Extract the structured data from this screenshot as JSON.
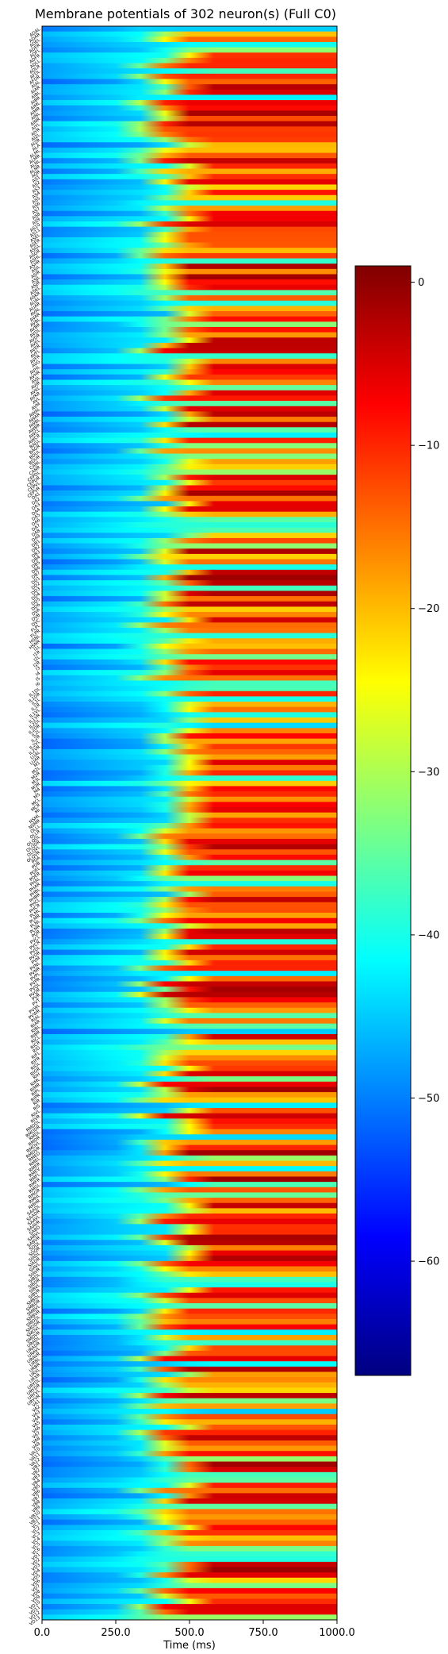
{
  "chart_data": {
    "type": "heatmap",
    "title": "Membrane potentials of 302 neuron(s) (Full C0)",
    "xlabel": "Time (ms)",
    "ylabel": "",
    "xlim": [
      0,
      1000
    ],
    "x_ticks": [
      "0.0",
      "250.0",
      "500.0",
      "750.0",
      "1000.0"
    ],
    "x_tick_values": [
      0,
      250,
      500,
      750,
      1000
    ],
    "neuron_count": 302,
    "colorbar": {
      "colormap": "jet",
      "range": [
        -67,
        1
      ],
      "ticks": [
        "0",
        "−10",
        "−20",
        "−30",
        "−40",
        "−50",
        "−60"
      ],
      "tick_values": [
        0,
        -10,
        -20,
        -30,
        -40,
        -50,
        -60
      ]
    },
    "row_labels": [
      "ADAL",
      "ADAR",
      "ADEL",
      "ADER",
      "ADFL",
      "ADFR",
      "ADLL",
      "ADLR",
      "AFDL",
      "AFDR",
      "AIAL",
      "AIAR",
      "AIBL",
      "AIBR",
      "AIML",
      "AIMR",
      "AINL",
      "AINR",
      "AIYL",
      "AIYR",
      "AIZL",
      "AIZR",
      "ALA",
      "ALML",
      "ALMR",
      "ALNL",
      "ALNR",
      "AQR",
      "AS1",
      "AS2",
      "AS3",
      "AS4",
      "AS5",
      "AS6",
      "AS7",
      "AS8",
      "AS9",
      "AS10",
      "AS11",
      "ASEL",
      "ASER",
      "ASGL",
      "ASGR",
      "ASHL",
      "ASHR",
      "ASIL",
      "ASIR",
      "ASJL",
      "ASJR",
      "ASKL",
      "ASKR",
      "AUAL",
      "AUAR",
      "AVAL",
      "AVAR",
      "AVBL",
      "AVBR",
      "AVDL",
      "AVDR",
      "AVEL",
      "AVER",
      "AVFL",
      "AVFR",
      "AVG",
      "AVHL",
      "AVHR",
      "AVJL",
      "AVJR",
      "AVKL",
      "AVKR",
      "AVL",
      "AVM",
      "AWAL",
      "AWAR",
      "AWBL",
      "AWBR",
      "AWCL",
      "AWCR",
      "BAGL",
      "BAGR",
      "BDUL",
      "BDUR",
      "CANL",
      "CANR",
      "CEPDL",
      "CEPDR",
      "CEPVL",
      "CEPVR",
      "DA1",
      "DA2",
      "DA3",
      "DA4",
      "DA5",
      "DA6",
      "DA7",
      "DA8",
      "DA9",
      "DB1",
      "DB2",
      "DB3",
      "DB4",
      "DB5",
      "DB6",
      "DB7",
      "DD1",
      "DD2",
      "DD3",
      "DD4",
      "DD5",
      "DD6",
      "DVA",
      "DVB",
      "DVC",
      "FLPL",
      "FLPR",
      "HSNL",
      "HSNR",
      "I1L",
      "I1R",
      "I2L",
      "I2R",
      "I3",
      "I4",
      "I5",
      "I6",
      "IL1DL",
      "IL1DR",
      "IL1L",
      "IL1R",
      "IL1VL",
      "IL1VR",
      "IL2DL",
      "IL2DR",
      "IL2L",
      "IL2R",
      "IL2VL",
      "IL2VR",
      "LUAL",
      "LUAR",
      "M1",
      "M2L",
      "M2R",
      "M3L",
      "M3R",
      "M4",
      "M5",
      "MCL",
      "MCR",
      "MI",
      "NSML",
      "NSMR",
      "OLLL",
      "OLLR",
      "OLQDL",
      "OLQDR",
      "OLQVL",
      "OLQVR",
      "PDA",
      "PDB",
      "PDEL",
      "PDER",
      "PHAL",
      "PHAR",
      "PHBL",
      "PHBR",
      "PHCL",
      "PHCR",
      "PLML",
      "PLMR",
      "PLNL",
      "PLNR",
      "PQR",
      "PVCL",
      "PVCR",
      "PVDL",
      "PVDR",
      "PVM",
      "PVNL",
      "PVNR",
      "PVPL",
      "PVPR",
      "PVQL",
      "PVQR",
      "PVR",
      "PVT",
      "PVWL",
      "PVWR",
      "RIAL",
      "RIAR",
      "RIBL",
      "RIBR",
      "RICL",
      "RICR",
      "RID",
      "RIFL",
      "RIFR",
      "RIGL",
      "RIGR",
      "RIH",
      "RIML",
      "RIMR",
      "RIPL",
      "RIPR",
      "RIR",
      "RIS",
      "RIVL",
      "RIVR",
      "RMDDL",
      "RMDDR",
      "RMDL",
      "RMDR",
      "RMDVL",
      "RMDVR",
      "RMED",
      "RMEL",
      "RMER",
      "RMEV",
      "RMFL",
      "RMFR",
      "RMGL",
      "RMGR",
      "RMHL",
      "RMHR",
      "SAADL",
      "SAADR",
      "SAAVL",
      "SAAVR",
      "SABD",
      "SABVL",
      "SABVR",
      "SDQL",
      "SDQR",
      "SIADL",
      "SIADR",
      "SIAVL",
      "SIAVR",
      "SIBDL",
      "SIBDR",
      "SIBVL",
      "SIBVR",
      "SMBDL",
      "SMBDR",
      "SMBVL",
      "SMBVR",
      "SMDDL",
      "SMDDR",
      "SMDVL",
      "SMDVR",
      "URADL",
      "URADR",
      "URAVL",
      "URAVR",
      "URBL",
      "URBR",
      "URXL",
      "URXR",
      "URYDL",
      "URYDR",
      "URYVL",
      "URYVR",
      "VA1",
      "VA2",
      "VA3",
      "VA4",
      "VA5",
      "VA6",
      "VA7",
      "VA8",
      "VA9",
      "VA10",
      "VA11",
      "VA12",
      "VB1",
      "VB2",
      "VB3",
      "VB4",
      "VB5",
      "VB6",
      "VB7",
      "VB8",
      "VB9",
      "VB10",
      "VB11",
      "VC1",
      "VC2",
      "VC3",
      "VC4",
      "VC5",
      "VC6",
      "VD1",
      "VD2",
      "VD3",
      "VD4",
      "VD5",
      "VD6",
      "VD7",
      "VD8",
      "VD9",
      "VD10",
      "VD11",
      "VD12",
      "VD13"
    ]
  }
}
